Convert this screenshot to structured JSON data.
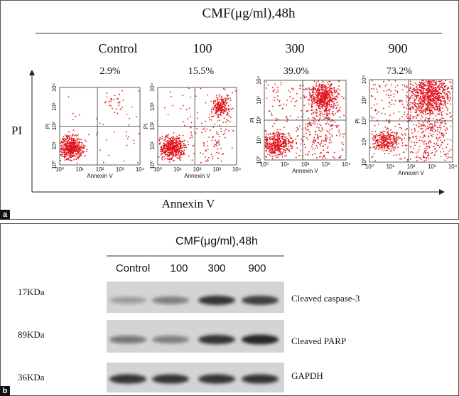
{
  "panel_a": {
    "label": "a",
    "title": "CMF(μg/ml),48h",
    "conditions": [
      {
        "name": "Control",
        "percent": "2.9%"
      },
      {
        "name": "100",
        "percent": "15.5%"
      },
      {
        "name": "300",
        "percent": "39.0%"
      },
      {
        "name": "900",
        "percent": "73.2%"
      }
    ],
    "y_axis_label": "PI",
    "x_axis_label": "Annexin V",
    "plot_axes": {
      "x_label": "Annexin V",
      "y_label": "PI",
      "ticks": [
        "10⁰",
        "10¹",
        "10²",
        "10³",
        "10⁴"
      ]
    }
  },
  "panel_b": {
    "label": "b",
    "title": "CMF(μg/ml),48h",
    "lanes": [
      "Control",
      "100",
      "300",
      "900"
    ],
    "blots": [
      {
        "marker": "17KDa",
        "protein": "Cleaved caspase-3"
      },
      {
        "marker": "89KDa",
        "protein": "Cleaved PARP"
      },
      {
        "marker": "36KDa",
        "protein": "GAPDH"
      }
    ]
  }
}
